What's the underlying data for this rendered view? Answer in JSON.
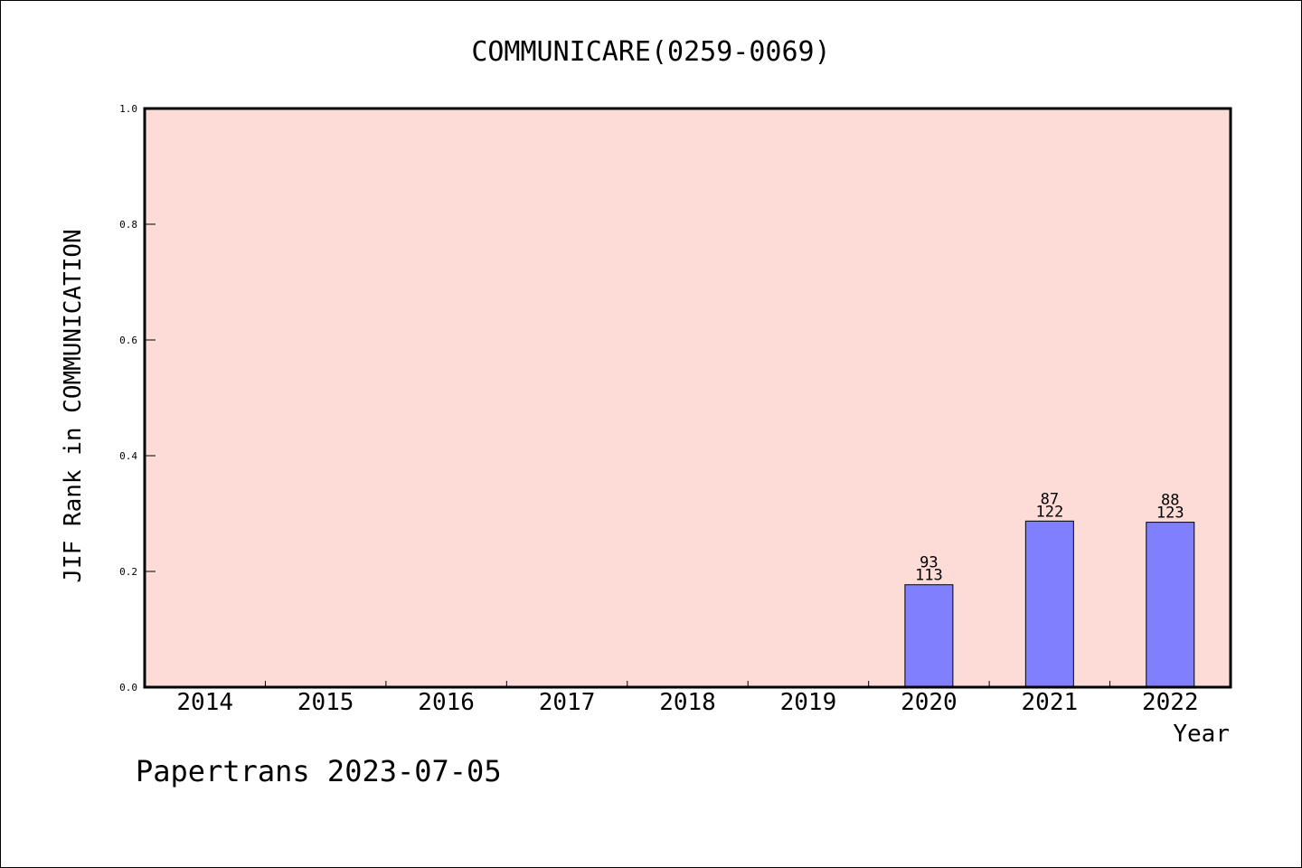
{
  "chart_data": {
    "type": "bar",
    "title": "COMMUNICARE(0259-0069)",
    "xlabel": "Year",
    "ylabel": "JIF Rank in COMMUNICATION",
    "ylim": [
      0,
      1.0
    ],
    "yticks": [
      "0.0",
      "0.2",
      "0.4",
      "0.6",
      "0.8",
      "1.0"
    ],
    "categories": [
      "2014",
      "2015",
      "2016",
      "2017",
      "2018",
      "2019",
      "2020",
      "2021",
      "2022"
    ],
    "values": [
      null,
      null,
      null,
      null,
      null,
      null,
      0.177,
      0.287,
      0.285
    ],
    "bar_labels": [
      null,
      null,
      null,
      null,
      null,
      null,
      {
        "rank": "93",
        "total": "113"
      },
      {
        "rank": "87",
        "total": "122"
      },
      {
        "rank": "88",
        "total": "123"
      }
    ],
    "grid": false,
    "colors": {
      "plot_background": "#fddbd7",
      "bar": "#8080ff",
      "axis": "#000000"
    }
  },
  "footer": {
    "text": "Papertrans 2023-07-05"
  }
}
